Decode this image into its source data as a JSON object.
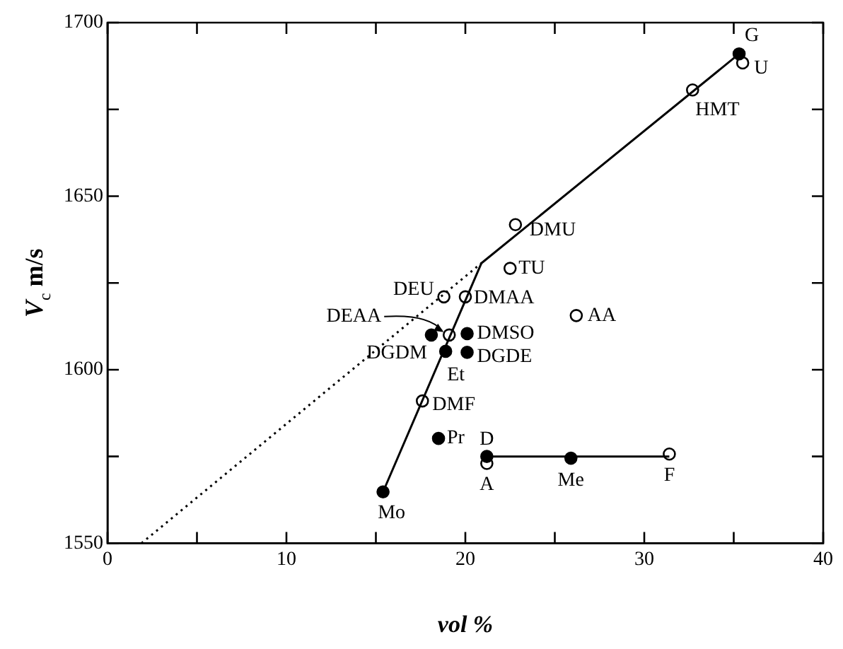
{
  "chart_data": {
    "type": "scatter",
    "xlabel": "vol %",
    "ylabel": "V$_{c}$ m/s",
    "xlim": [
      0,
      40
    ],
    "ylim": [
      1550,
      1700
    ],
    "xticks": [
      0,
      {
        "value": 5,
        "label": null
      },
      10,
      {
        "value": 15,
        "label": null
      },
      20,
      {
        "value": 25,
        "label": null
      },
      30,
      {
        "value": 35,
        "label": null
      },
      40
    ],
    "yticks": [
      1550,
      {
        "value": 1575,
        "label": null
      },
      1600,
      {
        "value": 1625,
        "label": null
      },
      1650,
      {
        "value": 1675,
        "label": null
      },
      1700
    ],
    "grid": false,
    "legend": false,
    "marker": "circle",
    "series": [
      {
        "type": "line",
        "marker": "none",
        "line_style": "solid",
        "color": "#000000",
        "x": [
          15.4,
          20.9,
          35.3
        ],
        "values": [
          1564.8,
          1630.7,
          1691
        ]
      },
      {
        "type": "line",
        "marker": "none",
        "line_style": "dotted",
        "color": "#000000",
        "x": [
          1.9,
          20.9
        ],
        "values": [
          1550,
          1630.7
        ]
      },
      {
        "type": "line",
        "marker": "none",
        "line_style": "solid",
        "color": "#000000",
        "x": [
          21.2,
          31.4
        ],
        "values": [
          1575,
          1575
        ]
      },
      {
        "color": "#000000",
        "x": [
          35.3,
          18.1,
          20.1,
          18.9,
          20.1,
          18.5,
          21.2,
          25.9,
          15.4
        ],
        "values": [
          1691,
          1610,
          1610.4,
          1605.3,
          1605,
          1580.2,
          1575,
          1574.5,
          1564.8
        ]
      },
      {
        "color": "#ffffff",
        "x": [
          35.5,
          32.7,
          22.8,
          22.5,
          18.8,
          20.0,
          26.2,
          19.1,
          17.6,
          21.2,
          31.4
        ],
        "values": [
          1688.4,
          1680.6,
          1641.8,
          1629.2,
          1621,
          1621,
          1615.6,
          1610,
          1591,
          1573,
          1575.7
        ]
      }
    ],
    "annotations": [
      {
        "text": "G",
        "x": 35.3,
        "y": 1691
      },
      {
        "text": "U",
        "x": 35.5,
        "y": 1688.4
      },
      {
        "text": "HMT",
        "x": 32.7,
        "y": 1680.6
      },
      {
        "text": "DMU",
        "x": 22.8,
        "y": 1641.8
      },
      {
        "text": "TU",
        "x": 22.5,
        "y": 1629.2
      },
      {
        "text": "DEU",
        "x": 18.8,
        "y": 1621
      },
      {
        "text": "DMAA",
        "x": 20.0,
        "y": 1621
      },
      {
        "text": "AA",
        "x": 26.2,
        "y": 1615.6
      },
      {
        "text": "DEAA",
        "x": 19.1,
        "y": 1610
      },
      {
        "text": "DMSO",
        "x": 20.1,
        "y": 1610.4
      },
      {
        "text": "DGDM",
        "x": 18.1,
        "y": 1610
      },
      {
        "text": "Et",
        "x": 18.9,
        "y": 1605.3
      },
      {
        "text": "DGDE",
        "x": 20.1,
        "y": 1605
      },
      {
        "text": "DMF",
        "x": 17.6,
        "y": 1591
      },
      {
        "text": "Pr",
        "x": 18.5,
        "y": 1580.2
      },
      {
        "text": "D",
        "x": 21.2,
        "y": 1575
      },
      {
        "text": "A",
        "x": 21.2,
        "y": 1573
      },
      {
        "text": "Me",
        "x": 25.9,
        "y": 1574.5
      },
      {
        "text": "F",
        "x": 31.4,
        "y": 1575.7
      },
      {
        "text": "Mo",
        "x": 15.4,
        "y": 1564.8
      }
    ]
  }
}
